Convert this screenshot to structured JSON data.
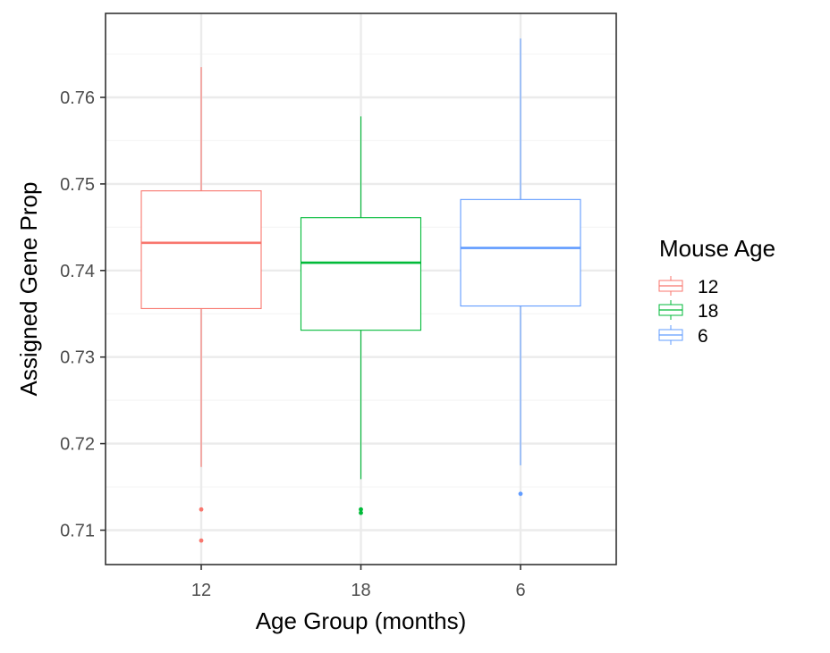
{
  "chart_data": {
    "type": "boxplot",
    "title": "",
    "xlabel": "Age Group (months)",
    "ylabel": "Assigned Gene Prop",
    "ylim": [
      0.7055,
      0.7695
    ],
    "yticks": [
      0.71,
      0.72,
      0.73,
      0.74,
      0.75,
      0.76
    ],
    "ytick_labels": [
      "0.71",
      "0.72",
      "0.73",
      "0.74",
      "0.75",
      "0.76"
    ],
    "categories": [
      "12",
      "18",
      "6"
    ],
    "grid": true,
    "legend": {
      "title": "Mouse Age",
      "position": "right",
      "entries": [
        "12",
        "18",
        "6"
      ]
    },
    "colors": {
      "12": "#F8766D",
      "18": "#00BA38",
      "6": "#619CFF",
      "grid_major": "#EBEBEB",
      "grid_minor": "#F5F5F5",
      "panel_border": "#333333"
    },
    "series": [
      {
        "name": "12",
        "category": "12",
        "whisker_low": 0.7173,
        "q1": 0.7356,
        "median": 0.7432,
        "q3": 0.7492,
        "whisker_high": 0.7635,
        "outliers": [
          0.7124,
          0.7088
        ]
      },
      {
        "name": "18",
        "category": "18",
        "whisker_low": 0.7159,
        "q1": 0.7331,
        "median": 0.7409,
        "q3": 0.7461,
        "whisker_high": 0.7578,
        "outliers": [
          0.7124,
          0.712
        ]
      },
      {
        "name": "6",
        "category": "6",
        "whisker_low": 0.7175,
        "q1": 0.7359,
        "median": 0.7426,
        "q3": 0.7482,
        "whisker_high": 0.7668,
        "outliers": [
          0.7142
        ]
      }
    ]
  }
}
